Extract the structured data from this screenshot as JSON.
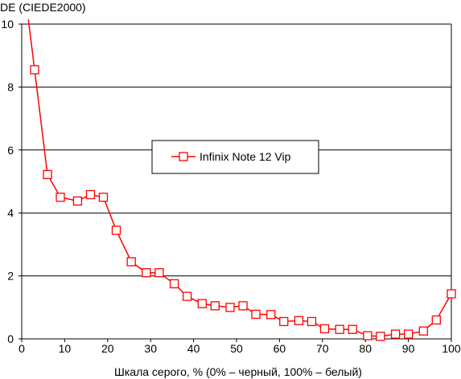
{
  "chart_data": {
    "type": "line",
    "title": "",
    "ylabel": "DE (CIEDE2000)",
    "xlabel": "Шкала серого, % (0% – черный, 100% – белый)",
    "xlim": [
      0,
      100
    ],
    "ylim": [
      0,
      10
    ],
    "xticks": [
      0,
      10,
      20,
      30,
      40,
      50,
      60,
      70,
      80,
      90,
      100
    ],
    "yticks": [
      0,
      2,
      4,
      6,
      8,
      10
    ],
    "grid": "horizontal",
    "legend_position": "center",
    "colors": {
      "series": "#ff0000",
      "marker_fill": "#ffffff",
      "grid": "#000000"
    },
    "series": [
      {
        "name": "Infinix Note 12 Vip",
        "x": [
          1.5,
          3,
          6,
          9,
          13,
          16,
          19,
          22,
          25.5,
          29,
          32,
          35.5,
          38.5,
          42,
          45,
          48.5,
          51.5,
          54.5,
          58,
          61,
          64.5,
          67.5,
          70.5,
          74,
          77,
          80.5,
          83.5,
          87,
          90,
          93.5,
          96.5,
          100
        ],
        "y": [
          10.2,
          8.55,
          5.22,
          4.5,
          4.38,
          4.58,
          4.5,
          3.45,
          2.45,
          2.1,
          2.1,
          1.75,
          1.35,
          1.12,
          1.05,
          1.0,
          1.05,
          0.78,
          0.77,
          0.55,
          0.58,
          0.55,
          0.32,
          0.3,
          0.3,
          0.1,
          0.08,
          0.15,
          0.15,
          0.25,
          0.6,
          1.43
        ]
      }
    ]
  }
}
